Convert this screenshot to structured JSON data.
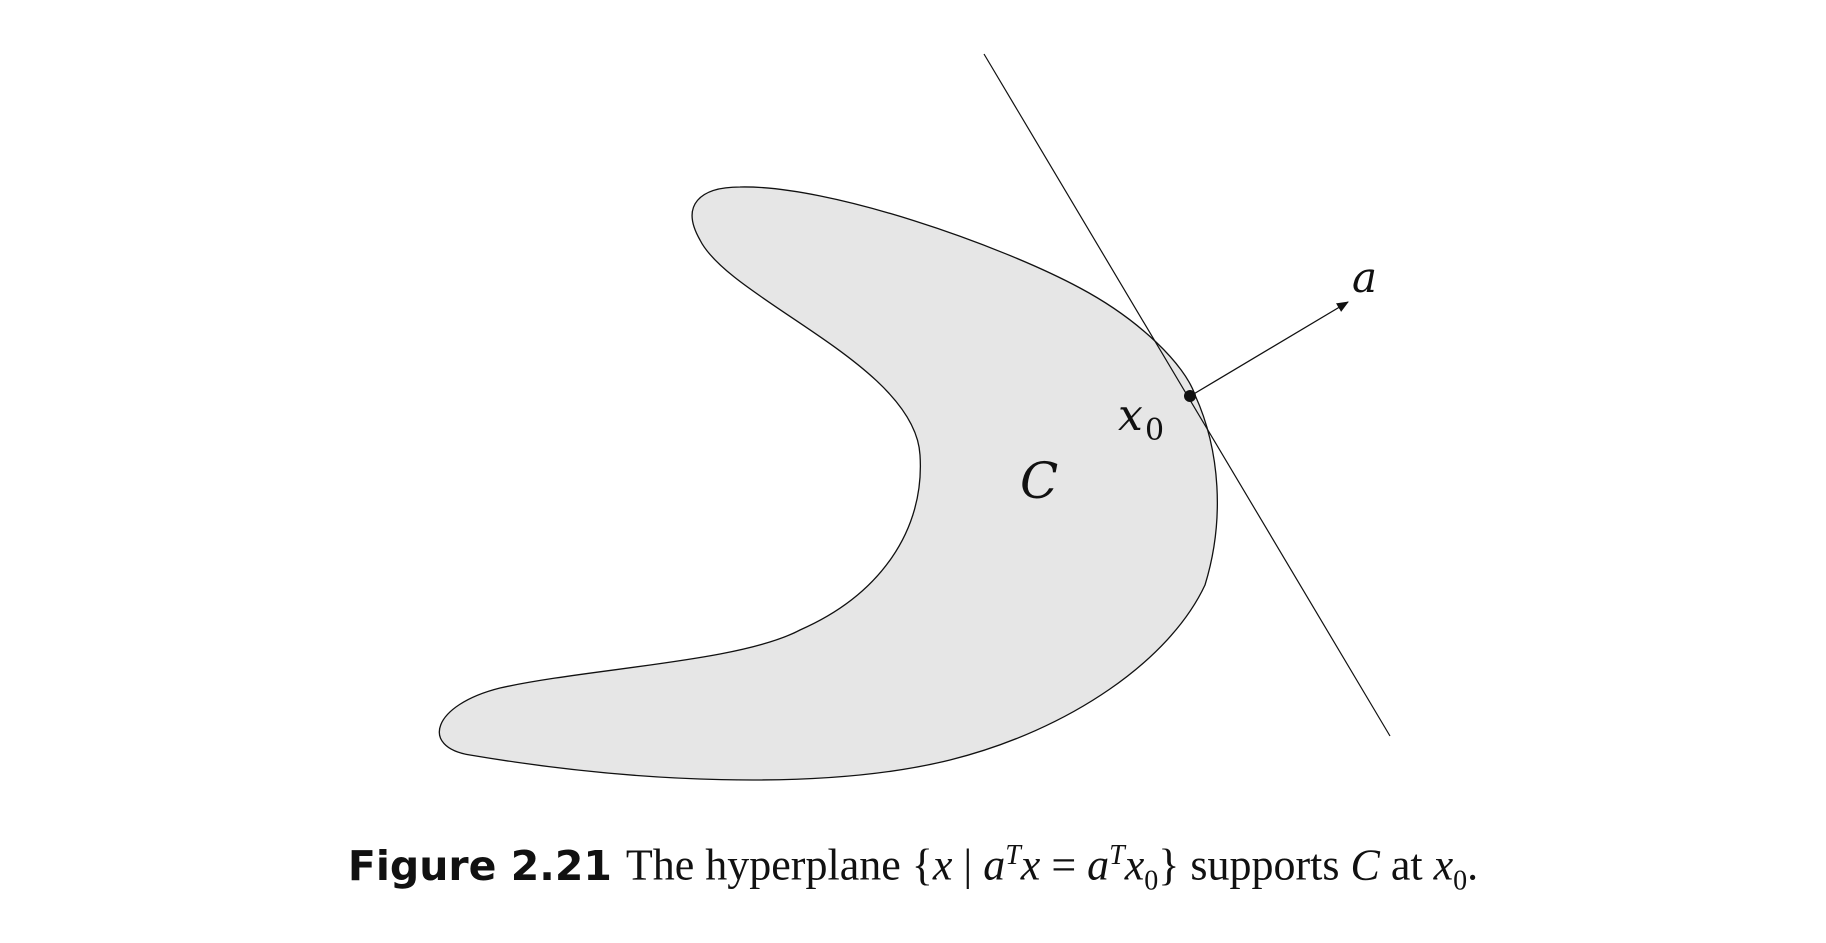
{
  "labels": {
    "set": "C",
    "point": "x",
    "point_subscript": "0",
    "normal_vector": "a"
  },
  "caption": {
    "label": "Figure 2.21",
    "text_the_hyperplane": "The hyperplane ",
    "brace_open": "{",
    "var_x": "x",
    "bar": " | ",
    "var_a1": "a",
    "sup_T1": "T",
    "var_x2": "x",
    "equals": " = ",
    "var_a2": "a",
    "sup_T2": "T",
    "var_x3": "x",
    "sub_0a": "0",
    "brace_close": "}",
    "text_supports": " supports ",
    "var_C": "C",
    "text_at": " at ",
    "var_x4": "x",
    "sub_0b": "0",
    "period": "."
  },
  "colors": {
    "set_fill": "#e6e6e6",
    "stroke": "#111111"
  }
}
